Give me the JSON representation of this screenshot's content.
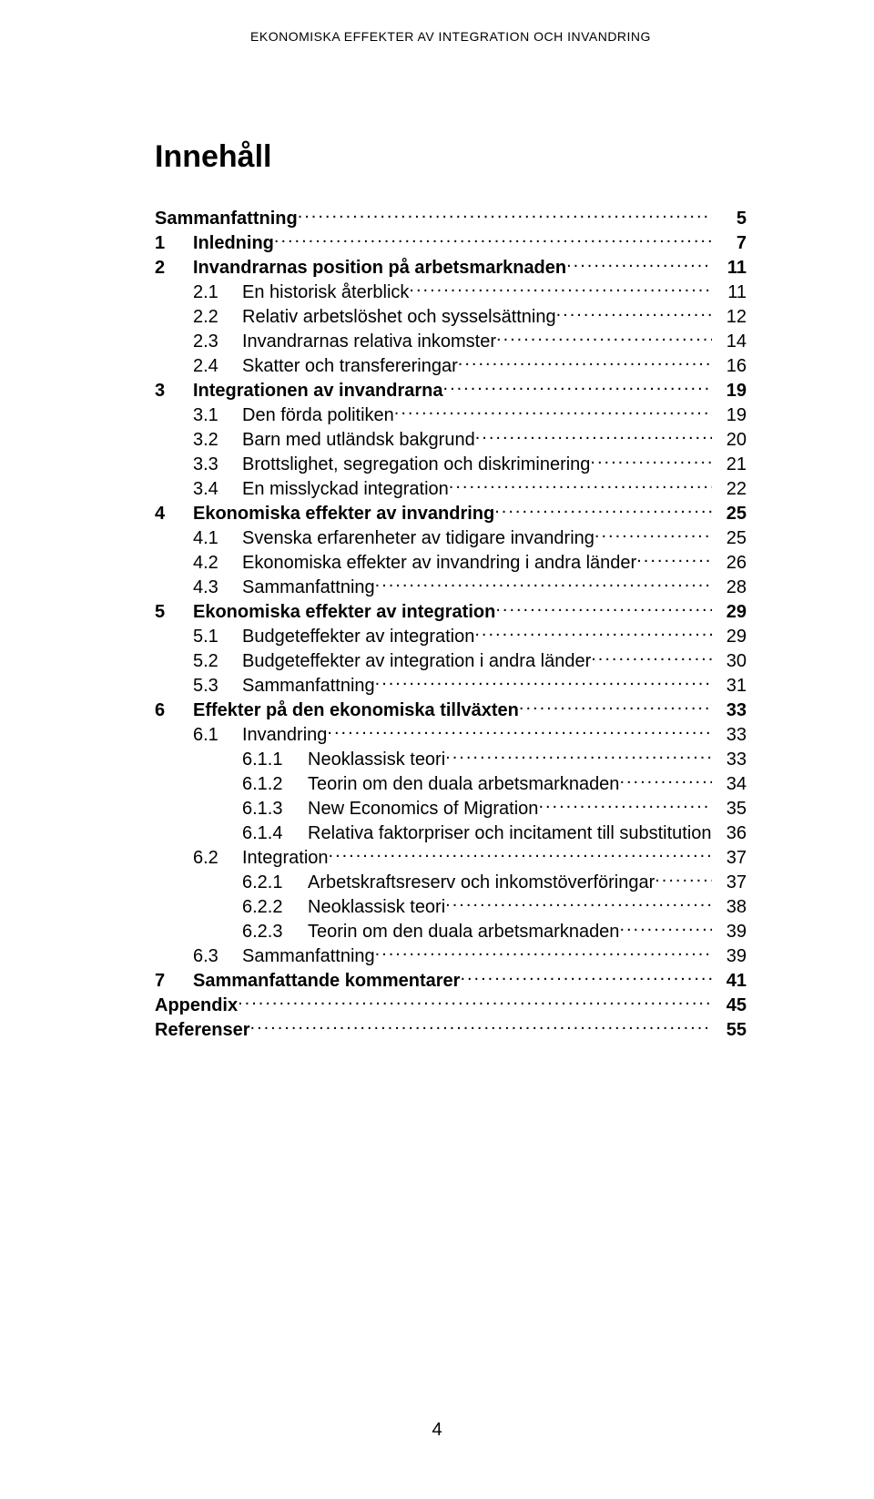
{
  "running_head": "EKONOMISKA EFFEKTER AV INTEGRATION OCH INVANDRING",
  "toc_title": "Innehåll",
  "footer_page": "4",
  "font": {
    "family": "Arial",
    "title_size_pt": 26,
    "body_size_pt": 15,
    "head_size_pt": 10
  },
  "colors": {
    "text": "#000000",
    "background": "#ffffff"
  },
  "entries": [
    {
      "level": 0,
      "bold": true,
      "num": "",
      "label": "Sammanfattning",
      "page": "5"
    },
    {
      "level": 0,
      "bold": true,
      "num": "1",
      "label": "Inledning",
      "page": "7"
    },
    {
      "level": 0,
      "bold": true,
      "num": "2",
      "label": "Invandrarnas position på arbetsmarknaden",
      "page": "11"
    },
    {
      "level": 1,
      "bold": false,
      "num": "2.1",
      "label": "En historisk återblick",
      "page": "11"
    },
    {
      "level": 1,
      "bold": false,
      "num": "2.2",
      "label": "Relativ arbetslöshet och sysselsättning",
      "page": "12"
    },
    {
      "level": 1,
      "bold": false,
      "num": "2.3",
      "label": "Invandrarnas relativa inkomster",
      "page": "14"
    },
    {
      "level": 1,
      "bold": false,
      "num": "2.4",
      "label": "Skatter och transfereringar",
      "page": "16"
    },
    {
      "level": 0,
      "bold": true,
      "num": "3",
      "label": "Integrationen av invandrarna",
      "page": "19"
    },
    {
      "level": 1,
      "bold": false,
      "num": "3.1",
      "label": "Den förda politiken",
      "page": "19"
    },
    {
      "level": 1,
      "bold": false,
      "num": "3.2",
      "label": "Barn med utländsk bakgrund",
      "page": "20"
    },
    {
      "level": 1,
      "bold": false,
      "num": "3.3",
      "label": "Brottslighet, segregation och diskriminering",
      "page": "21"
    },
    {
      "level": 1,
      "bold": false,
      "num": "3.4",
      "label": "En misslyckad integration",
      "page": "22"
    },
    {
      "level": 0,
      "bold": true,
      "num": "4",
      "label": "Ekonomiska effekter av invandring",
      "page": "25"
    },
    {
      "level": 1,
      "bold": false,
      "num": "4.1",
      "label": "Svenska erfarenheter av tidigare invandring",
      "page": "25"
    },
    {
      "level": 1,
      "bold": false,
      "num": "4.2",
      "label": "Ekonomiska effekter av invandring i andra länder",
      "page": "26"
    },
    {
      "level": 1,
      "bold": false,
      "num": "4.3",
      "label": "Sammanfattning",
      "page": "28"
    },
    {
      "level": 0,
      "bold": true,
      "num": "5",
      "label": "Ekonomiska effekter av integration",
      "page": "29"
    },
    {
      "level": 1,
      "bold": false,
      "num": "5.1",
      "label": "Budgeteffekter av integration",
      "page": "29"
    },
    {
      "level": 1,
      "bold": false,
      "num": "5.2",
      "label": "Budgeteffekter av integration i andra länder",
      "page": "30"
    },
    {
      "level": 1,
      "bold": false,
      "num": "5.3",
      "label": "Sammanfattning",
      "page": "31"
    },
    {
      "level": 0,
      "bold": true,
      "num": "6",
      "label": "Effekter på den ekonomiska tillväxten",
      "page": "33"
    },
    {
      "level": 1,
      "bold": false,
      "num": "6.1",
      "label": "Invandring",
      "page": "33"
    },
    {
      "level": 2,
      "bold": false,
      "num": "6.1.1",
      "label": "Neoklassisk teori",
      "page": "33"
    },
    {
      "level": 2,
      "bold": false,
      "num": "6.1.2",
      "label": "Teorin om den duala arbetsmarknaden",
      "page": "34"
    },
    {
      "level": 2,
      "bold": false,
      "num": "6.1.3",
      "label": "New Economics of Migration",
      "page": "35"
    },
    {
      "level": 2,
      "bold": false,
      "num": "6.1.4",
      "label": "Relativa faktorpriser och incitament till substitution",
      "page": "36"
    },
    {
      "level": 1,
      "bold": false,
      "num": "6.2",
      "label": "Integration",
      "page": "37"
    },
    {
      "level": 2,
      "bold": false,
      "num": "6.2.1",
      "label": "Arbetskraftsreserv och inkomstöverföringar",
      "page": "37"
    },
    {
      "level": 2,
      "bold": false,
      "num": "6.2.2",
      "label": "Neoklassisk teori",
      "page": "38"
    },
    {
      "level": 2,
      "bold": false,
      "num": "6.2.3",
      "label": "Teorin om den duala arbetsmarknaden",
      "page": "39"
    },
    {
      "level": 1,
      "bold": false,
      "num": "6.3",
      "label": "Sammanfattning",
      "page": "39"
    },
    {
      "level": 0,
      "bold": true,
      "num": "7",
      "label": "Sammanfattande kommentarer",
      "page": "41"
    },
    {
      "level": 0,
      "bold": true,
      "num": "",
      "label": "Appendix",
      "page": "45"
    },
    {
      "level": 0,
      "bold": true,
      "num": "",
      "label": "Referenser",
      "page": "55"
    }
  ]
}
